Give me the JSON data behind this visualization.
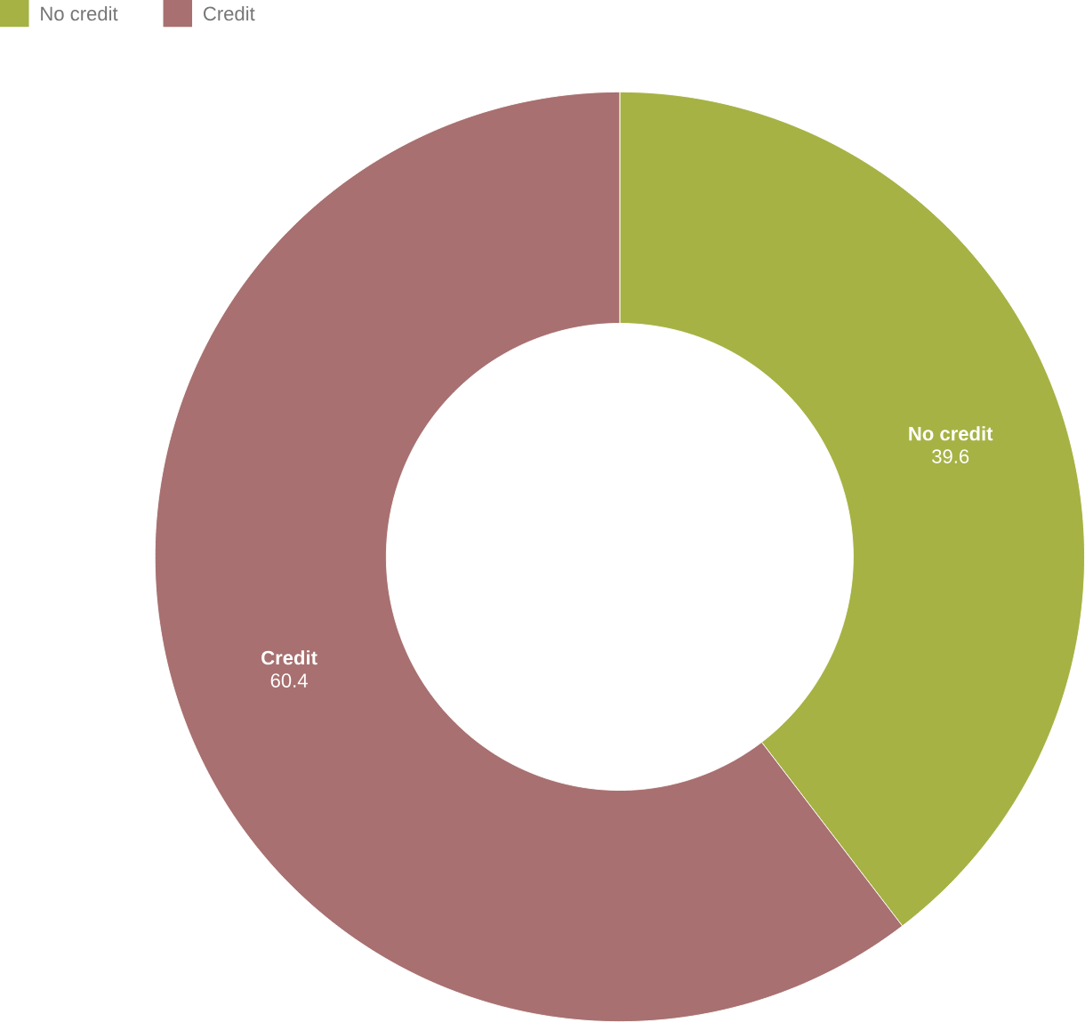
{
  "chart_data": {
    "type": "donut",
    "categories": [
      "No credit",
      "Credit"
    ],
    "values": [
      39.6,
      60.4
    ],
    "value_labels": [
      "39.6",
      "60.4"
    ],
    "colors": [
      "#a6b244",
      "#a87070"
    ],
    "legend": "top left"
  }
}
